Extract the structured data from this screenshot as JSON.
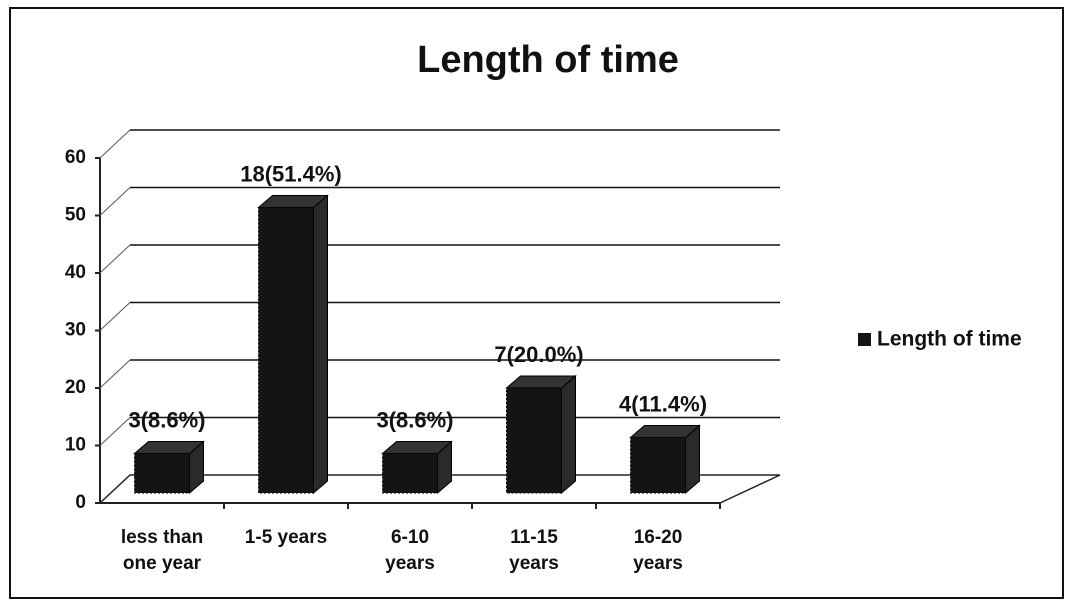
{
  "chart_data": {
    "type": "bar3d",
    "title": "Length of time",
    "categories": [
      "less than one year",
      "1-5 years",
      "6-10 years",
      "11-15 years",
      "16-20 years"
    ],
    "series": [
      {
        "name": "Length of time",
        "color": "#141414",
        "values": [
          8.6,
          51.4,
          8.6,
          20.0,
          11.4
        ],
        "value_labels": [
          "3(8.6%)",
          "18(51.4%)",
          "3(8.6%)",
          "7(20.0%)",
          "4(11.4%)"
        ]
      }
    ],
    "ylim": [
      0,
      60
    ],
    "yticks": [
      0,
      10,
      20,
      30,
      40,
      50,
      60
    ],
    "grid": true,
    "legend": "right"
  }
}
